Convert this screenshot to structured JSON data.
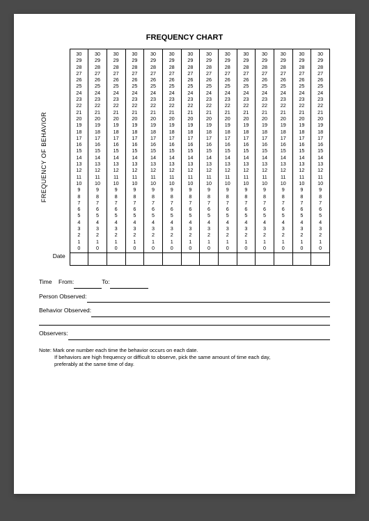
{
  "title": "FREQUENCY CHART",
  "ylabel": "FREQUENCY OF BEHAVIOR",
  "chart": {
    "columns": 14,
    "max": 30,
    "min": 0,
    "background": "#ffffff",
    "border_color": "#000000",
    "font_size": 7.2
  },
  "date_label": "Date",
  "fields": {
    "time_label": "Time",
    "from_label": "From:",
    "to_label": "To:",
    "person_label": "Person Observed:",
    "behavior_label": "Behavior Observed:",
    "observers_label": "Observers:"
  },
  "note": {
    "line1": "Note: Mark one number each time the behavior occurs on each date.",
    "line2": "If behaviors are high frequency or difficult to observe, pick the same amount of time each day,",
    "line3": "preferably at the same time of day."
  }
}
